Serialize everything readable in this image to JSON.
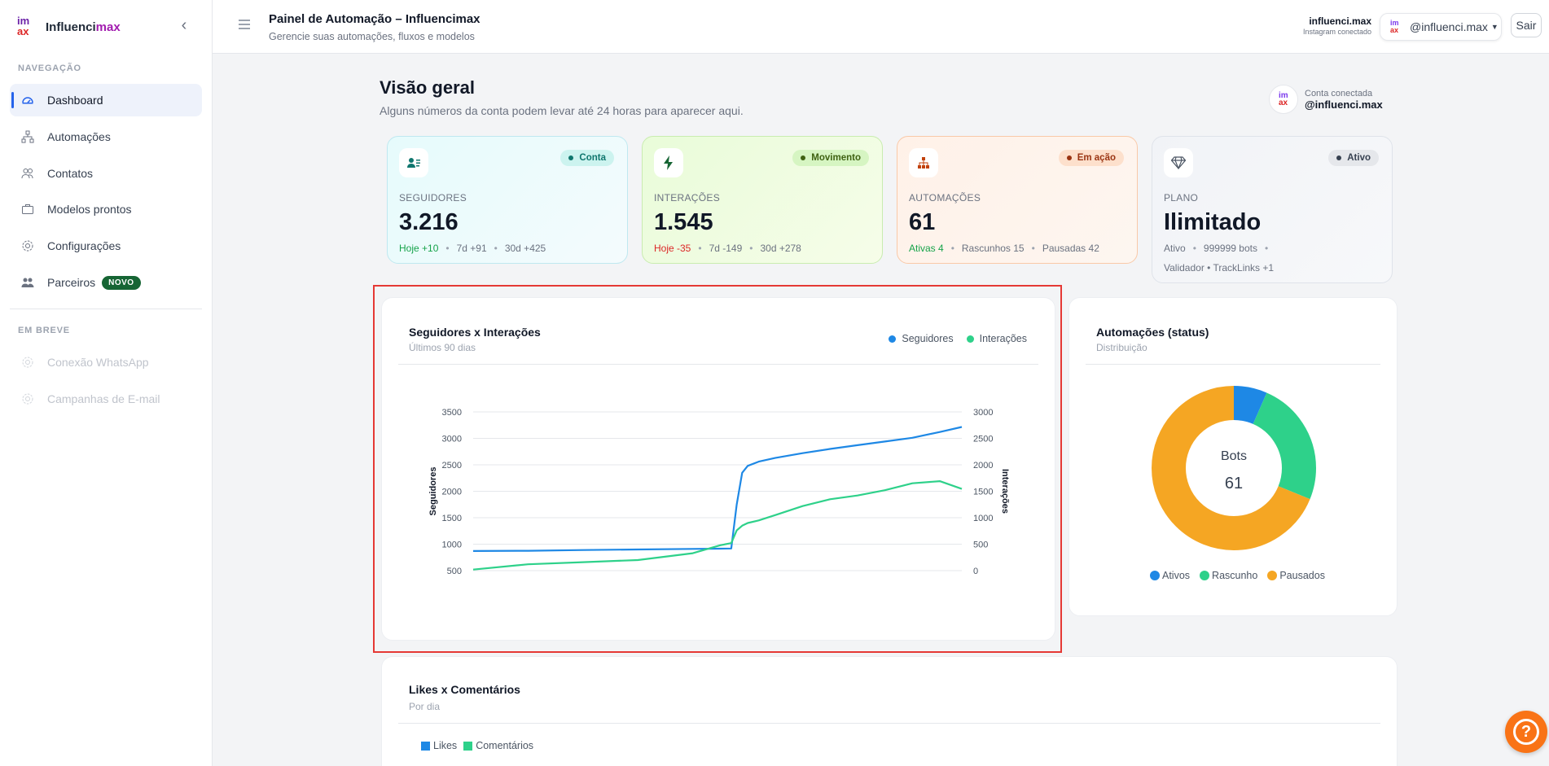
{
  "brand": {
    "name_prefix": "Influenci",
    "name_suffix": "max",
    "logo_top": "im",
    "logo_bottom": "ax"
  },
  "sidebar": {
    "section_nav": "NAVEGAÇÃO",
    "items": [
      {
        "label": "Dashboard",
        "icon": "gauge-icon",
        "active": true
      },
      {
        "label": "Automações",
        "icon": "sitemap-icon"
      },
      {
        "label": "Contatos",
        "icon": "users-icon"
      },
      {
        "label": "Modelos prontos",
        "icon": "briefcase-icon"
      },
      {
        "label": "Configurações",
        "icon": "gear-icon"
      },
      {
        "label": "Parceiros",
        "icon": "people-icon",
        "badge": "NOVO"
      }
    ],
    "section_soon": "EM BREVE",
    "soon_items": [
      {
        "label": "Conexão WhatsApp",
        "icon": "gear-icon"
      },
      {
        "label": "Campanhas de E-mail",
        "icon": "gear-icon"
      }
    ]
  },
  "header": {
    "title": "Painel de Automação – Influencimax",
    "subtitle": "Gerencie suas automações, fluxos e modelos",
    "account_name": "influenci.max",
    "account_status": "Instagram conectado",
    "account_select": "@influenci.max",
    "logout": "Sair"
  },
  "overview": {
    "title": "Visão geral",
    "subtitle": "Alguns números da conta podem levar até 24 horas para aparecer aqui.",
    "connected_label": "Conta conectada",
    "connected_handle": "@influenci.max"
  },
  "cards": [
    {
      "pill": "Conta",
      "label": "SEGUIDORES",
      "value": "3.216",
      "f1": "Hoje +10",
      "f2": "7d +91",
      "f3": "30d +425",
      "accent": "#16a34a"
    },
    {
      "pill": "Movimento",
      "label": "INTERAÇÕES",
      "value": "1.545",
      "f1": "Hoje -35",
      "f2": "7d -149",
      "f3": "30d +278",
      "accent": "#dc2626"
    },
    {
      "pill": "Em ação",
      "label": "AUTOMAÇÕES",
      "value": "61",
      "f1": "Ativas 4",
      "f2": "Rascunhos 15",
      "f3": "Pausadas 42",
      "accent": "#16a34a"
    },
    {
      "pill": "Ativo",
      "label": "PLANO",
      "value": "Ilimitado",
      "f1": "Ativo",
      "f2": "999999 bots",
      "f3": "Validador • TrackLinks +1",
      "accent": "#6b7280"
    }
  ],
  "line_chart": {
    "title": "Seguidores x Interações",
    "subtitle": "Últimos 90 dias",
    "legend": [
      "Seguidores",
      "Interações"
    ]
  },
  "donut_chart": {
    "title": "Automações (status)",
    "subtitle": "Distribuição",
    "center_label": "Bots",
    "center_value": "61",
    "legend": [
      "Ativos",
      "Rascunho",
      "Pausados"
    ]
  },
  "bar_chart": {
    "title": "Likes x Comentários",
    "subtitle": "Por dia",
    "legend": [
      "Likes",
      "Comentários"
    ]
  },
  "chart_data": [
    {
      "type": "line",
      "title": "Seguidores x Interações",
      "subtitle": "Últimos 90 dias",
      "y_left_label": "Seguidores",
      "y_right_label": "Interações",
      "y_left_ticks": [
        500,
        1000,
        1500,
        2000,
        2500,
        3000,
        3500
      ],
      "y_right_ticks": [
        0,
        500,
        1000,
        1500,
        2000,
        2500,
        3000
      ],
      "ylim_left": [
        500,
        3500
      ],
      "ylim_right": [
        0,
        3000
      ],
      "legend_position": "top-right",
      "grid": true,
      "x": [
        0,
        10,
        20,
        30,
        40,
        45,
        47,
        48,
        49,
        50,
        52,
        55,
        60,
        65,
        70,
        75,
        80,
        85,
        89
      ],
      "series": [
        {
          "name": "Seguidores",
          "color": "#1e88e5",
          "values": [
            870,
            875,
            890,
            900,
            910,
            915,
            918,
            1750,
            2350,
            2480,
            2560,
            2630,
            2720,
            2800,
            2870,
            2940,
            3010,
            3120,
            3216
          ]
        },
        {
          "name": "Interações",
          "color": "#2ed18a",
          "values": [
            20,
            120,
            160,
            200,
            330,
            480,
            520,
            760,
            850,
            900,
            950,
            1050,
            1220,
            1350,
            1420,
            1520,
            1650,
            1690,
            1545
          ]
        }
      ]
    },
    {
      "type": "pie",
      "title": "Automações (status)",
      "subtitle": "Distribuição",
      "categories": [
        "Ativos",
        "Rascunho",
        "Pausados"
      ],
      "values": [
        4,
        15,
        42
      ],
      "colors": [
        "#1e88e5",
        "#2ed18a",
        "#f5a623"
      ],
      "legend_position": "bottom"
    },
    {
      "type": "bar",
      "title": "Likes x Comentários",
      "subtitle": "Por dia",
      "series": [
        {
          "name": "Likes",
          "color": "#1e88e5"
        },
        {
          "name": "Comentários",
          "color": "#2ed18a"
        }
      ],
      "legend_position": "top-left"
    }
  ]
}
